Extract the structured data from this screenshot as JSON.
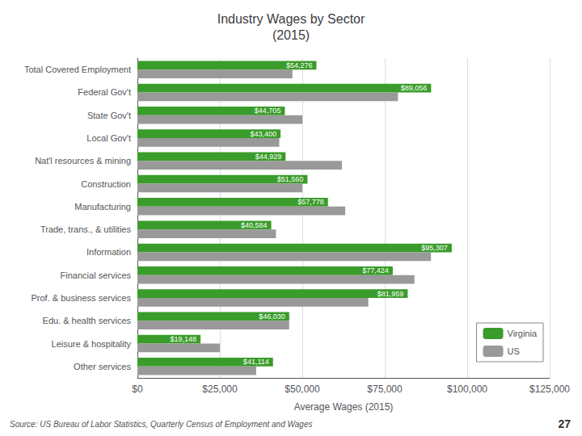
{
  "chart_data": {
    "type": "bar",
    "orientation": "horizontal",
    "title": "Industry Wages by Sector\n(2015)",
    "categories": [
      "Total Covered Employment",
      "Federal Gov't",
      "State Gov't",
      "Local Gov't",
      "Nat'l resources & mining",
      "Construction",
      "Manufacturing",
      "Trade, trans., & utilities",
      "Information",
      "Financial services",
      "Prof. & business services",
      "Edu. & health services",
      "Leisure & hospitality",
      "Other services"
    ],
    "series": [
      {
        "name": "Virginia",
        "color": "#3a9c2a",
        "values": [
          54276,
          89056,
          44705,
          43400,
          44929,
          51560,
          57778,
          40584,
          95307,
          77424,
          81959,
          46030,
          19148,
          41114
        ],
        "data_labels": true,
        "value_labels": [
          "$54,276",
          "$89,056",
          "$44,705",
          "$43,400",
          "$44,929",
          "$51,560",
          "$57,778",
          "$40,584",
          "$95,307",
          "$77,424",
          "$81,959",
          "$46,030",
          "$19,148",
          "$41,114"
        ]
      },
      {
        "name": "US",
        "color": "#999999",
        "values": [
          47000,
          79000,
          50000,
          43000,
          62000,
          50000,
          63000,
          42000,
          89000,
          84000,
          70000,
          46000,
          25000,
          36000
        ]
      }
    ],
    "xlabel": "Average Wages (2015)",
    "xlim": [
      0,
      125000
    ],
    "xticks": [
      {
        "value": 0,
        "label": "$0"
      },
      {
        "value": 25000,
        "label": "$25,000"
      },
      {
        "value": 50000,
        "label": "$50,000"
      },
      {
        "value": 75000,
        "label": "$75,000"
      },
      {
        "value": 100000,
        "label": "$100,000"
      },
      {
        "value": 125000,
        "label": "$125,000"
      }
    ],
    "grid": true,
    "legend": "lower right",
    "annotations": [
      "Source: US Bureau of Labor Statistics, Quarterly Census of Employment and Wages",
      "27"
    ]
  }
}
